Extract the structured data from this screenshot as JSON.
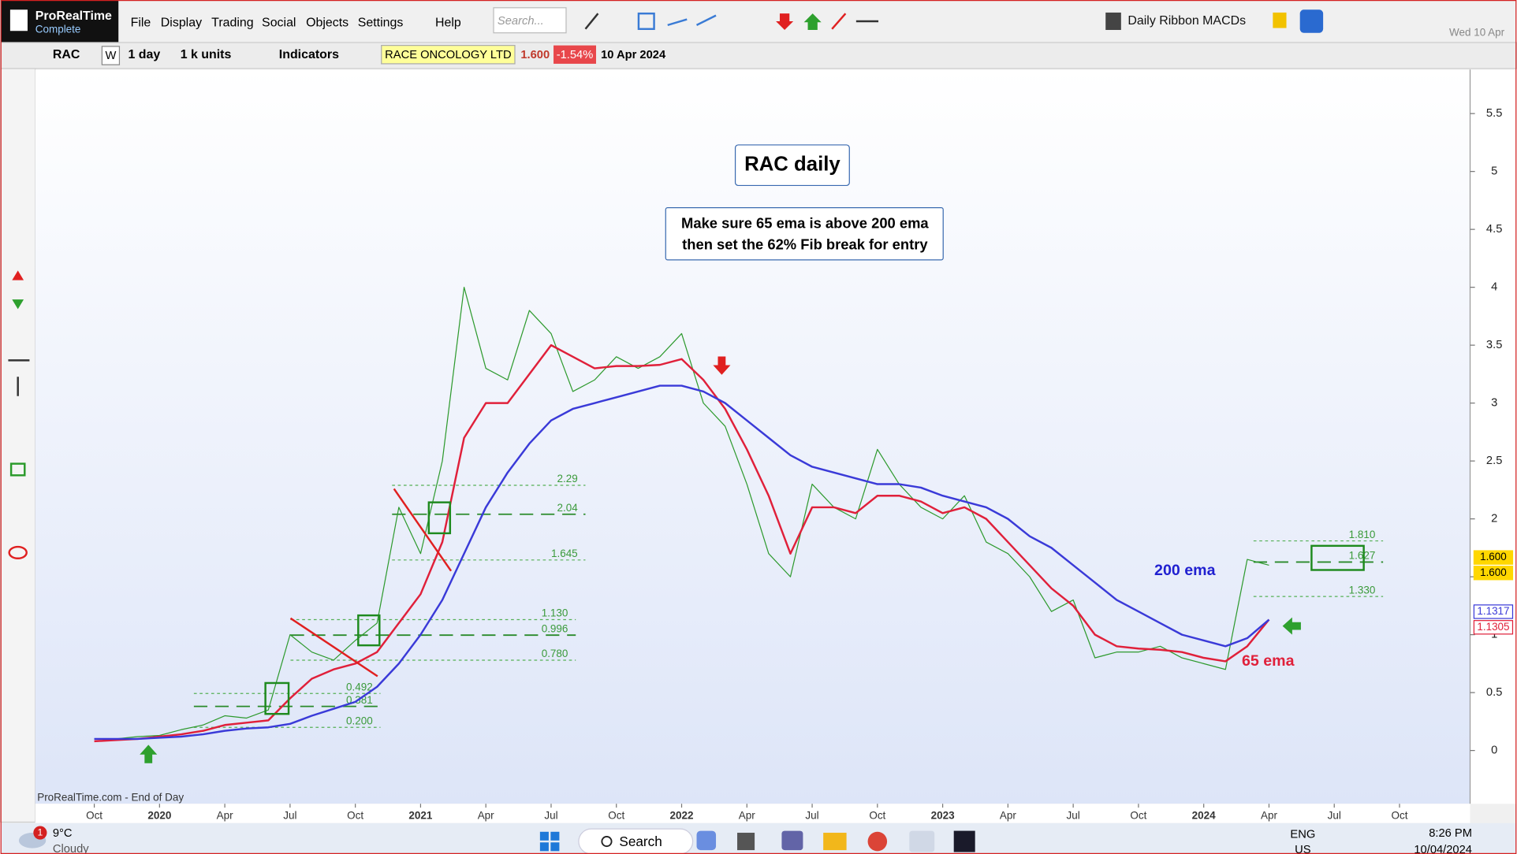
{
  "app": {
    "name": "ProRealTime",
    "edition": "Complete",
    "menu": [
      "File",
      "Display",
      "Trading",
      "Social",
      "Objects",
      "Settings",
      "Help"
    ],
    "search_placeholder": "Search...",
    "layout": "Daily Ribbon MACDs",
    "date": "Wed 10 Apr"
  },
  "toolbar": {
    "ticker": "RAC",
    "week": "W",
    "period": "1 day",
    "units": "1 k units",
    "indicators": "Indicators",
    "instrument": "RACE ONCOLOGY LTD",
    "price": "1.600",
    "change": "-1.54%",
    "price_date": "10 Apr 2024"
  },
  "chart_data": {
    "type": "line",
    "title": "RAC daily",
    "annotations": [
      "Make sure 65 ema is above 200 ema",
      "then set the 62% Fib break for entry"
    ],
    "series_labels": [
      "200 ema",
      "65 ema"
    ],
    "source": "ProRealTime.com - End of Day",
    "categories": [
      "Oct",
      null,
      null,
      "2020",
      null,
      null,
      "Apr",
      null,
      null,
      "Jul",
      null,
      null,
      "Oct",
      null,
      null,
      "2021",
      null,
      null,
      "Apr",
      null,
      null,
      "Jul",
      null,
      null,
      "Oct",
      null,
      null,
      "2022",
      null,
      null,
      "Apr",
      null,
      null,
      "Jul",
      null,
      null,
      "Oct",
      null,
      null,
      "2023",
      null,
      null,
      "Apr",
      null,
      null,
      "Jul",
      null,
      null,
      "Oct",
      null,
      null,
      "2024",
      null,
      null,
      "Apr",
      null,
      null,
      "Jul",
      null,
      null,
      "Oct"
    ],
    "series": [
      {
        "name": "Price",
        "color": "#2e9a2e",
        "values": [
          0.1,
          0.1,
          0.12,
          0.13,
          0.18,
          0.22,
          0.3,
          0.28,
          0.35,
          1.0,
          0.85,
          0.78,
          0.95,
          1.1,
          2.1,
          1.7,
          2.5,
          4.0,
          3.3,
          3.2,
          3.8,
          3.6,
          3.1,
          3.2,
          3.4,
          3.3,
          3.4,
          3.6,
          3.0,
          2.8,
          2.3,
          1.7,
          1.5,
          2.3,
          2.1,
          2.0,
          2.6,
          2.3,
          2.1,
          2.0,
          2.2,
          1.8,
          1.7,
          1.5,
          1.2,
          1.3,
          0.8,
          0.85,
          0.85,
          0.9,
          0.8,
          0.75,
          0.7,
          1.65,
          1.6,
          null,
          null,
          null,
          null,
          null,
          null
        ]
      },
      {
        "name": "65 ema",
        "color": "#e0203a",
        "values": [
          0.08,
          0.09,
          0.1,
          0.12,
          0.14,
          0.17,
          0.22,
          0.24,
          0.26,
          0.45,
          0.62,
          0.7,
          0.75,
          0.85,
          1.1,
          1.35,
          1.8,
          2.7,
          3.0,
          3.0,
          3.25,
          3.5,
          3.4,
          3.3,
          3.32,
          3.32,
          3.33,
          3.38,
          3.2,
          2.95,
          2.6,
          2.2,
          1.7,
          2.1,
          2.1,
          2.05,
          2.2,
          2.2,
          2.15,
          2.05,
          2.1,
          2.0,
          1.8,
          1.6,
          1.4,
          1.25,
          1.0,
          0.9,
          0.88,
          0.87,
          0.85,
          0.8,
          0.77,
          0.9,
          1.13,
          null,
          null,
          null,
          null,
          null,
          null
        ]
      },
      {
        "name": "200 ema",
        "color": "#3a3ad8",
        "values": [
          0.1,
          0.1,
          0.1,
          0.11,
          0.12,
          0.14,
          0.17,
          0.19,
          0.2,
          0.23,
          0.3,
          0.36,
          0.42,
          0.55,
          0.75,
          1.0,
          1.3,
          1.7,
          2.1,
          2.4,
          2.65,
          2.85,
          2.95,
          3.0,
          3.05,
          3.1,
          3.15,
          3.15,
          3.1,
          3.0,
          2.85,
          2.7,
          2.55,
          2.45,
          2.4,
          2.35,
          2.3,
          2.3,
          2.27,
          2.2,
          2.15,
          2.1,
          2.0,
          1.85,
          1.75,
          1.6,
          1.45,
          1.3,
          1.2,
          1.1,
          1.0,
          0.95,
          0.9,
          0.97,
          1.13,
          null,
          null,
          null,
          null,
          null,
          null
        ]
      }
    ],
    "ylim": [
      -0.46,
      5.88
    ],
    "yticks": [
      0,
      0.5,
      1,
      1.5,
      2,
      2.5,
      3,
      3.5,
      4,
      4.5,
      5,
      5.5
    ],
    "fib_sets": [
      {
        "levels": [
          0.492,
          0.381,
          {
            "value": 0.2,
            "label": "0.200"
          }
        ]
      },
      {
        "levels": [
          {
            "value": 1.13,
            "label": "1.130"
          },
          0.996,
          {
            "value": 0.78,
            "label": "0.780"
          }
        ]
      },
      {
        "levels": [
          2.29,
          2.04,
          1.645
        ]
      },
      {
        "levels": [
          {
            "value": 1.81,
            "label": "1.810"
          },
          1.627,
          {
            "value": 1.33,
            "label": "1.330"
          }
        ]
      }
    ],
    "price_tags": [
      {
        "value": 1.6,
        "label": "1.600",
        "color": "#ffd700"
      },
      {
        "value": 1.6,
        "label": "1.600",
        "color": "#ffd700"
      },
      {
        "value": 1.1317,
        "label": "1.1317",
        "color": "#3a3ad8"
      },
      {
        "value": 1.1305,
        "label": "1.1305",
        "color": "#e0203a"
      }
    ]
  },
  "taskbar": {
    "weather_badge": "1",
    "temperature": "9°C",
    "condition": "Cloudy",
    "search": "Search",
    "language": "ENG",
    "region": "US",
    "time": "8:26 PM",
    "date": "10/04/2024"
  }
}
